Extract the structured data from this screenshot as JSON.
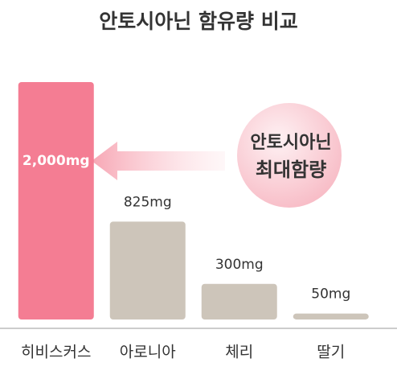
{
  "chart_data": {
    "type": "bar",
    "title": "안토시아닌 함유량 비교",
    "categories": [
      "히비스커스",
      "아로니아",
      "체리",
      "딸기"
    ],
    "values": [
      2000,
      825,
      300,
      50
    ],
    "value_labels": [
      "2,000mg",
      "825mg",
      "300mg",
      "50mg"
    ],
    "colors": [
      "#f47d93",
      "#cdc5ba",
      "#cdc5ba",
      "#cdc5ba"
    ],
    "annotation": [
      "안토시아닌",
      "최대함량"
    ]
  }
}
